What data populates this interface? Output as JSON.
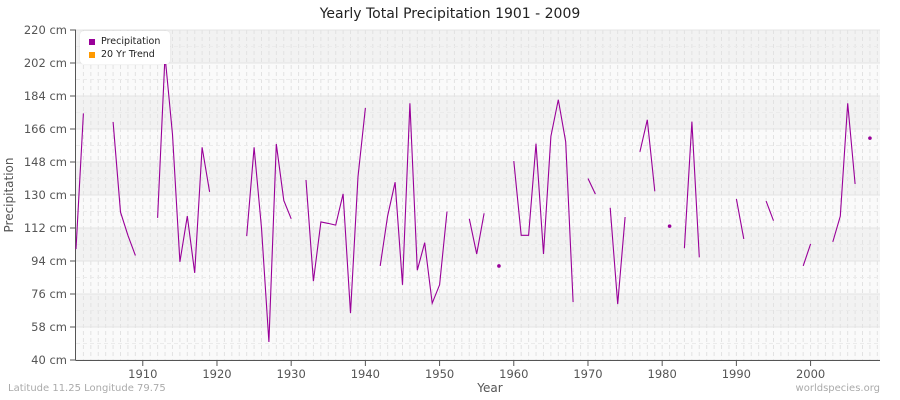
{
  "title": "Yearly Total Precipitation 1901 - 2009",
  "footer": {
    "left": "Latitude 11.25 Longitude 79.75",
    "right": "worldspecies.org"
  },
  "legend": [
    {
      "label": "Precipitation",
      "color": "#990099"
    },
    {
      "label": "20 Yr Trend",
      "color": "#ff9900"
    }
  ],
  "chart_data": {
    "type": "line",
    "title": "Yearly Total Precipitation 1901 - 2009",
    "xlabel": "Year",
    "ylabel": "Precipitation",
    "xlim": [
      1901,
      2009
    ],
    "ylim": [
      40,
      220
    ],
    "y_unit": "cm",
    "y_ticks": [
      40,
      58,
      76,
      94,
      112,
      130,
      148,
      166,
      184,
      202,
      220
    ],
    "y_tick_labels": [
      "40 cm",
      "58 cm",
      "76 cm",
      "94 cm",
      "112 cm",
      "130 cm",
      "148 cm",
      "166 cm",
      "184 cm",
      "202 cm",
      "220 cm"
    ],
    "x_ticks": [
      1910,
      1920,
      1930,
      1940,
      1950,
      1960,
      1970,
      1980,
      1990,
      2000
    ],
    "x_tick_labels": [
      "1910",
      "1920",
      "1930",
      "1940",
      "1950",
      "1960",
      "1970",
      "1980",
      "1990",
      "2000"
    ],
    "grid": true,
    "legend_position": "top-left",
    "series": [
      {
        "name": "Precipitation",
        "color": "#990099",
        "points": [
          [
            1901,
            100.5
          ],
          [
            1902,
            174.5
          ],
          [
            1906,
            169.8
          ],
          [
            1907,
            120.7
          ],
          [
            1908,
            108
          ],
          [
            1909,
            97
          ],
          [
            1912,
            117.5
          ],
          [
            1913,
            206
          ],
          [
            1914,
            163
          ],
          [
            1915,
            93.5
          ],
          [
            1916,
            118.5
          ],
          [
            1917,
            87.5
          ],
          [
            1918,
            156
          ],
          [
            1919,
            131.7
          ],
          [
            1924,
            107.6
          ],
          [
            1925,
            156
          ],
          [
            1926,
            112
          ],
          [
            1927,
            49.8
          ],
          [
            1928,
            157.8
          ],
          [
            1929,
            127
          ],
          [
            1930,
            117
          ],
          [
            1932,
            138.2
          ],
          [
            1933,
            83
          ],
          [
            1934,
            115.3
          ],
          [
            1935,
            114.5
          ],
          [
            1936,
            113.6
          ],
          [
            1937,
            130.6
          ],
          [
            1938,
            65.6
          ],
          [
            1939,
            140
          ],
          [
            1940,
            177.5
          ],
          [
            1942,
            91.3
          ],
          [
            1943,
            118.5
          ],
          [
            1944,
            137
          ],
          [
            1945,
            81
          ],
          [
            1946,
            180
          ],
          [
            1947,
            89
          ],
          [
            1948,
            104
          ],
          [
            1949,
            71
          ],
          [
            1950,
            81
          ],
          [
            1951,
            121
          ],
          [
            1954,
            117
          ],
          [
            1955,
            97.8
          ],
          [
            1956,
            120
          ],
          [
            1958,
            91.3
          ],
          [
            1960,
            148.5
          ],
          [
            1961,
            108
          ],
          [
            1962,
            108
          ],
          [
            1963,
            158
          ],
          [
            1964,
            97.8
          ],
          [
            1965,
            162
          ],
          [
            1966,
            182
          ],
          [
            1967,
            159
          ],
          [
            1968,
            71.6
          ],
          [
            1970,
            139
          ],
          [
            1971,
            130.5
          ],
          [
            1973,
            123
          ],
          [
            1974,
            70.5
          ],
          [
            1975,
            118
          ],
          [
            1977,
            153.5
          ],
          [
            1978,
            171
          ],
          [
            1979,
            132
          ],
          [
            1981,
            113
          ],
          [
            1983,
            101
          ],
          [
            1984,
            170
          ],
          [
            1985,
            96
          ],
          [
            1990,
            127.8
          ],
          [
            1991,
            106
          ],
          [
            1994,
            126.7
          ],
          [
            1995,
            116
          ],
          [
            1999,
            91.3
          ],
          [
            2000,
            103.3
          ],
          [
            2003,
            104.4
          ],
          [
            2004,
            118.5
          ],
          [
            2005,
            180
          ],
          [
            2006,
            136
          ],
          [
            2008,
            161
          ]
        ]
      },
      {
        "name": "20 Yr Trend",
        "color": "#ff9900",
        "points": []
      }
    ]
  }
}
